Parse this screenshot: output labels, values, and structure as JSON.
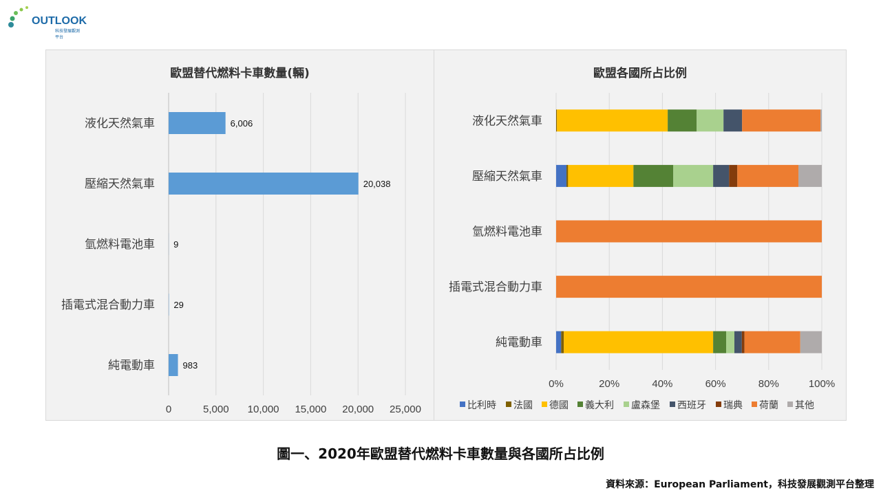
{
  "logo": {
    "text": "OUTLOOK",
    "subtitle": "科技發展觀測平台"
  },
  "caption": "圖一、2020年歐盟替代燃料卡車數量與各國所占比例",
  "source": "資料來源：European Parliament，科技發展觀測平台整理",
  "chart_data": [
    {
      "type": "bar",
      "orientation": "horizontal",
      "title": "歐盟替代燃料卡車數量(輛)",
      "categories": [
        "液化天然氣車",
        "壓縮天然氣車",
        "氫燃料電池車",
        "插電式混合動力車",
        "純電動車"
      ],
      "values": [
        6006,
        20038,
        9,
        29,
        983
      ],
      "data_labels": [
        "6,006",
        "20,038",
        "9",
        "29",
        "983"
      ],
      "xlim": [
        0,
        25000
      ],
      "xticks": [
        "0",
        "5,000",
        "10,000",
        "15,000",
        "20,000",
        "25,000"
      ],
      "grid": true,
      "color": "#5b9bd5"
    },
    {
      "type": "bar",
      "orientation": "horizontal",
      "stacked": "percent",
      "title": "歐盟各國所占比例",
      "categories": [
        "液化天然氣車",
        "壓縮天然氣車",
        "氫燃料電池車",
        "插電式混合動力車",
        "純電動車"
      ],
      "xticks": [
        "0%",
        "20%",
        "40%",
        "60%",
        "80%",
        "100%"
      ],
      "legend_position": "bottom",
      "series": [
        {
          "name": "比利時",
          "color": "#4472c4",
          "values": [
            0,
            3.9,
            0,
            0,
            1.9
          ]
        },
        {
          "name": "法國",
          "color": "#7f6000",
          "values": [
            0.3,
            0.6,
            0,
            0,
            1.0
          ]
        },
        {
          "name": "德國",
          "color": "#ffc000",
          "values": [
            41.7,
            24.6,
            0,
            0,
            56.2
          ]
        },
        {
          "name": "義大利",
          "color": "#548235",
          "values": [
            10.9,
            15.0,
            0,
            0,
            4.9
          ]
        },
        {
          "name": "盧森堡",
          "color": "#a9d18e",
          "values": [
            10.1,
            15.0,
            0,
            0,
            3.1
          ]
        },
        {
          "name": "西班牙",
          "color": "#44546a",
          "values": [
            7.0,
            6.0,
            0,
            0,
            2.8
          ]
        },
        {
          "name": "瑞典",
          "color": "#843c0c",
          "values": [
            0,
            3.1,
            0,
            0,
            1.0
          ]
        },
        {
          "name": "荷蘭",
          "color": "#ed7d31",
          "values": [
            29.5,
            23.0,
            100,
            100,
            21.0
          ]
        },
        {
          "name": "其他",
          "color": "#afabab",
          "values": [
            0.5,
            8.8,
            0,
            0,
            8.1
          ]
        }
      ]
    }
  ]
}
